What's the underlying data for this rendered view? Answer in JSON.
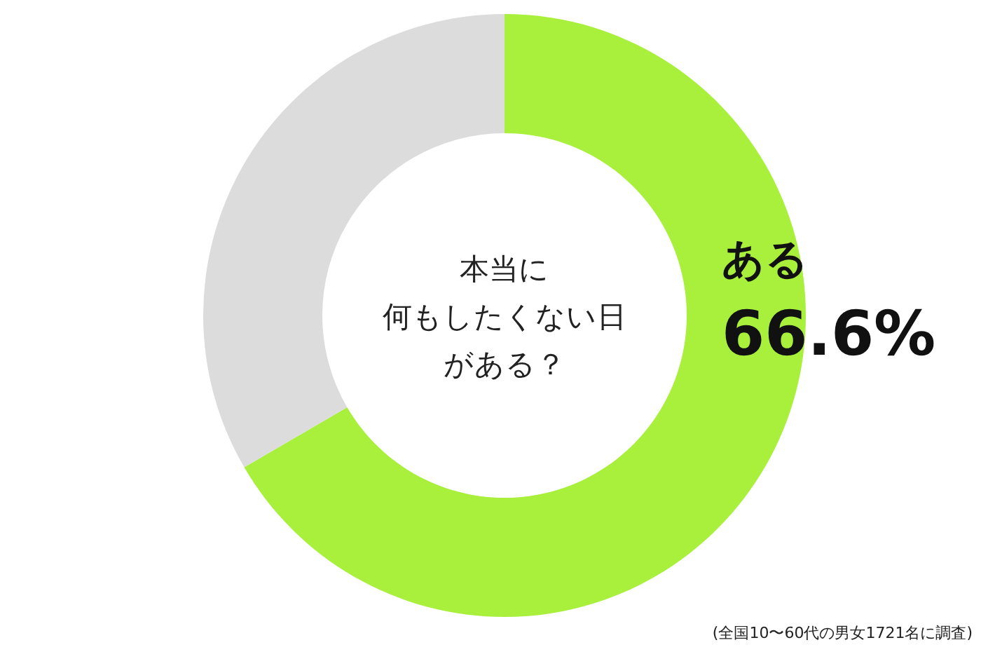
{
  "chart_data": {
    "type": "donut",
    "title": "本当に何もしたくない日がある？",
    "categories": [
      "ある",
      null
    ],
    "values": [
      66.6,
      33.4
    ],
    "colors": [
      "#a8f03c",
      "#dcdcdc"
    ],
    "value_labels": [
      "66.6%",
      null
    ],
    "annotations": [
      "(全国10〜60代の男女1721名に調査)"
    ]
  }
}
